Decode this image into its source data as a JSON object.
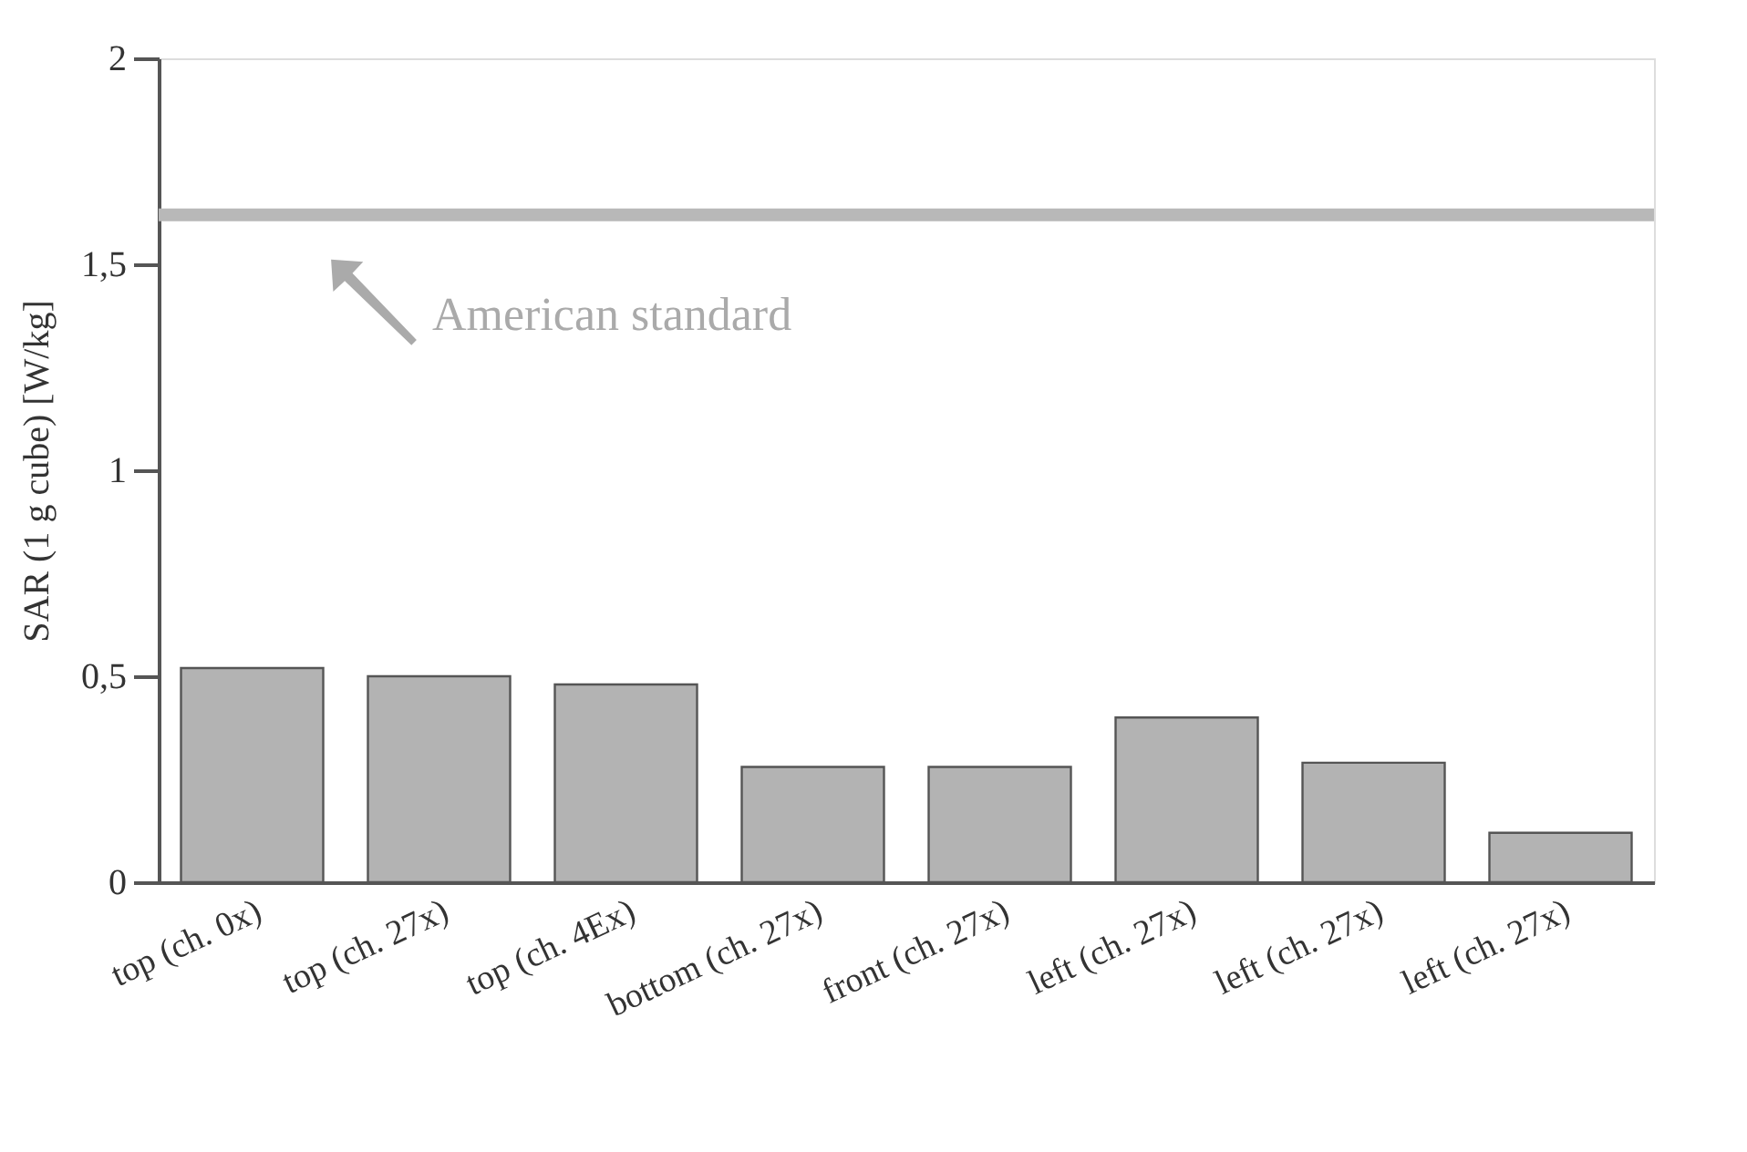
{
  "chart_data": {
    "type": "bar",
    "ylabel": "SAR (1 g cube) [W/kg]",
    "categories": [
      "top (ch. 0x)",
      "top (ch. 27x)",
      "top (ch. 4Ex)",
      "bottom (ch. 27x)",
      "front (ch. 27x)",
      "left (ch. 27x)",
      "left (ch. 27x)",
      "left (ch. 27x)"
    ],
    "values": [
      0.52,
      0.5,
      0.48,
      0.28,
      0.28,
      0.4,
      0.29,
      0.12
    ],
    "color": "#b3b3b3",
    "ylim": [
      0,
      2
    ],
    "yticks": [
      0,
      {
        "value": 0.5,
        "label": "0,5"
      },
      1,
      {
        "value": 1.5,
        "label": "1,5"
      },
      2
    ],
    "grid": false,
    "ref_lines": [
      {
        "axis": "y",
        "value": 1.62,
        "label": "American standard",
        "color": "#b8b8b8",
        "line_style": "solid"
      }
    ]
  }
}
